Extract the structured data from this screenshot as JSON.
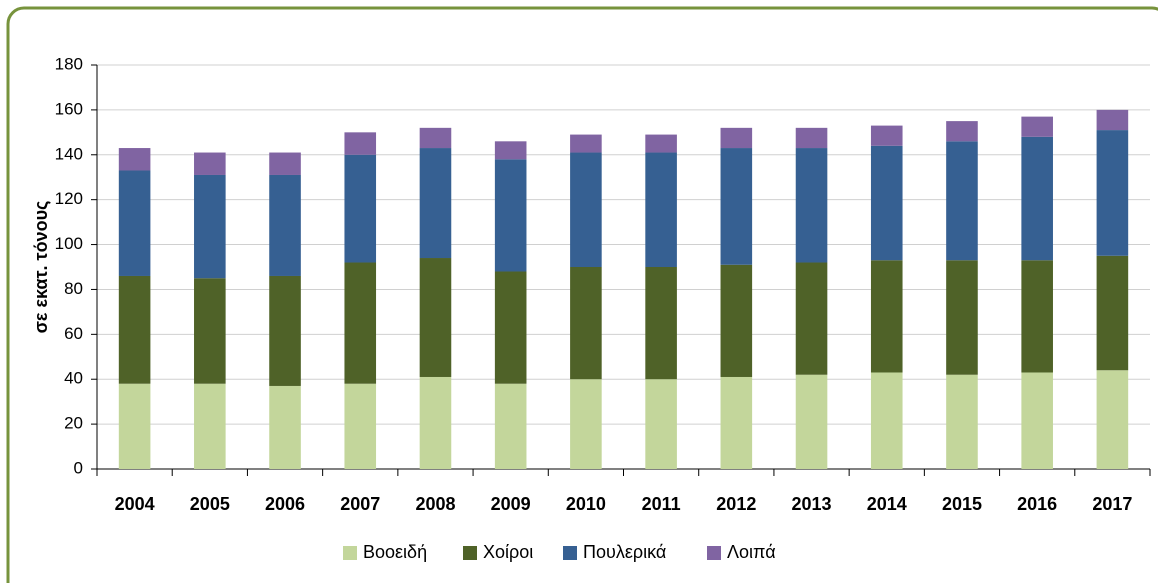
{
  "chart_data": {
    "type": "stacked_bar",
    "ylabel": "σε εκατ. τόνους",
    "categories": [
      "2004",
      "2005",
      "2006",
      "2007",
      "2008",
      "2009",
      "2010",
      "2011",
      "2012",
      "2013",
      "2014",
      "2015",
      "2016",
      "2017"
    ],
    "series": [
      {
        "name": "Βοοειδή",
        "color": "#c3d69b",
        "values": [
          38,
          38,
          37,
          38,
          41,
          38,
          40,
          40,
          41,
          42,
          43,
          42,
          43,
          44
        ]
      },
      {
        "name": "Χοίροι",
        "color": "#4f6228",
        "values": [
          48,
          47,
          49,
          54,
          53,
          50,
          50,
          50,
          50,
          50,
          50,
          51,
          50,
          51
        ]
      },
      {
        "name": "Πουλερικά",
        "color": "#366092",
        "values": [
          47,
          46,
          45,
          48,
          49,
          50,
          51,
          51,
          52,
          51,
          51,
          53,
          55,
          56
        ]
      },
      {
        "name": "Λοιπά",
        "color": "#8064a2",
        "values": [
          10,
          10,
          10,
          10,
          9,
          8,
          8,
          8,
          9,
          9,
          9,
          9,
          9,
          9
        ]
      }
    ],
    "ylim": [
      0,
      180
    ],
    "yticks": [
      0,
      20,
      40,
      60,
      80,
      100,
      120,
      140,
      160,
      180
    ],
    "grid": true,
    "legend": "bottom"
  }
}
